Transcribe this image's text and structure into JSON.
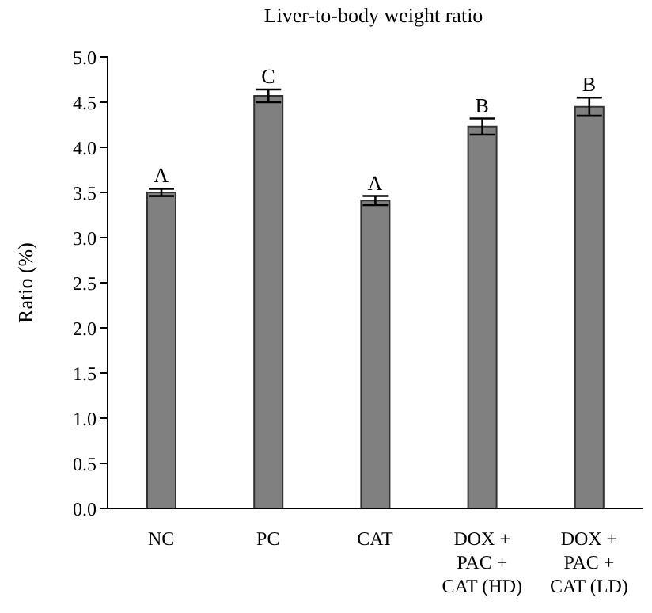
{
  "chart_data": {
    "type": "bar",
    "title": "Liver-to-body weight ratio",
    "ylabel": "Ratio (%)",
    "categories": [
      "NC",
      "PC",
      "CAT",
      "DOX +\nPAC +\nCAT (HD)",
      "DOX +\nPAC +\nCAT (LD)"
    ],
    "values": [
      3.5,
      4.57,
      3.41,
      4.23,
      4.45
    ],
    "errors": [
      0.04,
      0.07,
      0.05,
      0.09,
      0.1
    ],
    "color": "#808080",
    "ylim": [
      0,
      5
    ],
    "yticks": [
      {
        "value": 0,
        "label": "0.0"
      },
      0.5,
      {
        "value": 1,
        "label": "1.0"
      },
      1.5,
      {
        "value": 2,
        "label": "2.0"
      },
      2.5,
      {
        "value": 3,
        "label": "3.0"
      },
      3.5,
      {
        "value": 4,
        "label": "4.0"
      },
      4.5,
      {
        "value": 5,
        "label": "5.0"
      }
    ],
    "annotations": [
      {
        "text": "A",
        "x": "NC",
        "y": 3.54
      },
      {
        "text": "C",
        "x": "PC",
        "y": 4.64
      },
      {
        "text": "A",
        "x": "CAT",
        "y": 3.46
      },
      {
        "text": "B",
        "x": "DOX +\nPAC +\nCAT (HD)",
        "y": 4.32
      },
      {
        "text": "B",
        "x": "DOX +\nPAC +\nCAT (LD)",
        "y": 4.55
      }
    ],
    "grid": false,
    "legend": false
  }
}
